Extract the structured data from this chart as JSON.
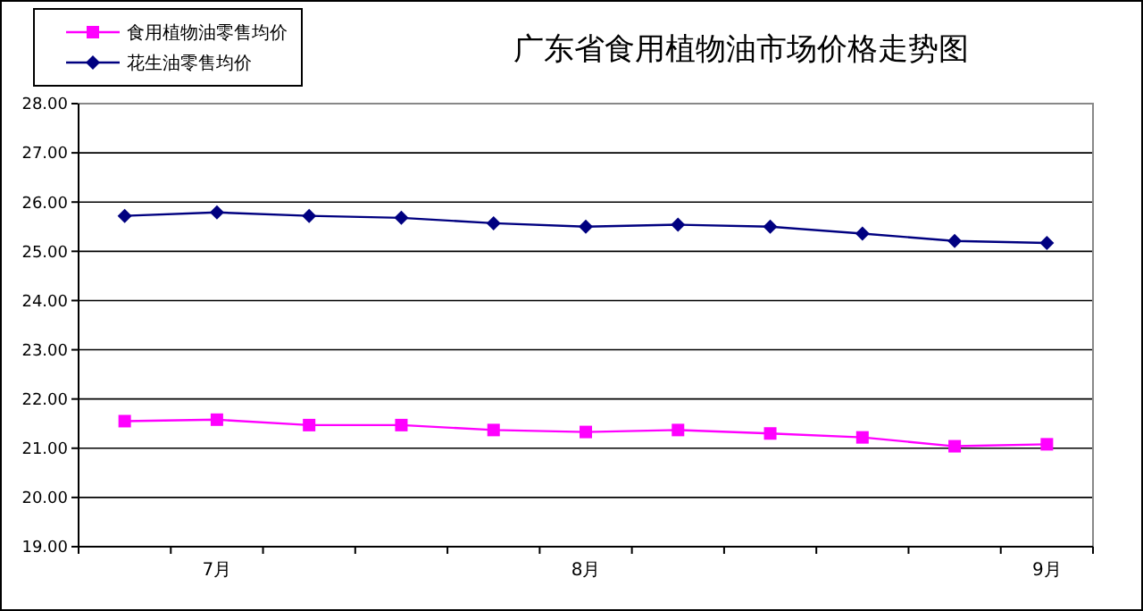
{
  "chart_data": {
    "type": "line",
    "title": "广东省食用植物油市场价格走势图",
    "categories": [
      null,
      "7月",
      null,
      null,
      null,
      "8月",
      null,
      null,
      null,
      null,
      "9月"
    ],
    "series": [
      {
        "name": "食用植物油零售均价",
        "color": "#ff00ff",
        "marker": "square",
        "values": [
          21.55,
          21.58,
          21.47,
          21.47,
          21.37,
          21.33,
          21.37,
          21.3,
          21.22,
          21.04,
          21.08
        ]
      },
      {
        "name": "花生油零售均价",
        "color": "#000080",
        "marker": "diamond",
        "values": [
          25.72,
          25.79,
          25.72,
          25.68,
          25.57,
          25.5,
          25.54,
          25.5,
          25.36,
          25.21,
          25.17
        ]
      }
    ],
    "ylim": [
      19,
      28
    ],
    "yticks": [
      {
        "value": 19,
        "label": "19.00"
      },
      {
        "value": 20,
        "label": "20.00"
      },
      {
        "value": 21,
        "label": "21.00"
      },
      {
        "value": 22,
        "label": "22.00"
      },
      {
        "value": 23,
        "label": "23.00"
      },
      {
        "value": 24,
        "label": "24.00"
      },
      {
        "value": 25,
        "label": "25.00"
      },
      {
        "value": 26,
        "label": "26.00"
      },
      {
        "value": 27,
        "label": "27.00"
      },
      {
        "value": 28,
        "label": "28.00"
      }
    ],
    "grid": "y",
    "legend": "top left"
  }
}
